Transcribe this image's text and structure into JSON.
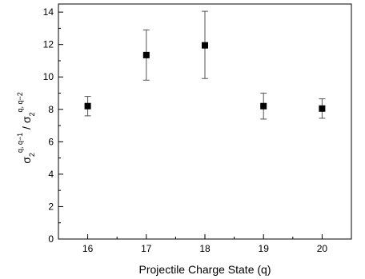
{
  "chart_data": {
    "type": "scatter",
    "x": [
      16,
      17,
      18,
      19,
      20
    ],
    "y": [
      8.2,
      11.35,
      11.95,
      8.2,
      8.05
    ],
    "err_low": [
      7.6,
      9.8,
      9.9,
      7.4,
      7.45
    ],
    "err_high": [
      8.8,
      12.9,
      14.05,
      9.0,
      8.65
    ],
    "xlim": [
      15.5,
      20.5
    ],
    "ylim": [
      0,
      14.5
    ],
    "x_ticks": [
      "16",
      "17",
      "18",
      "19",
      "20"
    ],
    "y_ticks": [
      "0",
      "2",
      "4",
      "6",
      "8",
      "10",
      "12",
      "14"
    ],
    "xlabel": "Projectile Charge State (q)",
    "ylabel": {
      "sigma1": "σ",
      "sub1": "2",
      "sup1": "q, q−1",
      "slash": " / ",
      "sigma2": "σ",
      "sub2": "2",
      "sup2": "q, q−2"
    },
    "grid": false,
    "marker_color": "#000000",
    "errorbar_color": "#555555"
  }
}
